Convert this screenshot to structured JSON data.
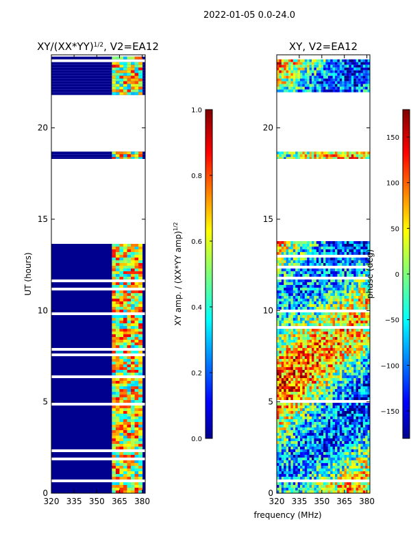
{
  "suptitle": "2022-01-05 0.0-24.0",
  "colors": {
    "white": "#ffffff",
    "axis": "#000000",
    "background_low": "#00008f"
  },
  "chart_data": [
    {
      "type": "heatmap",
      "title": "XY/(XX*YY)",
      "title_superscript": "1/2",
      "title_suffix": ", V2=EA12",
      "xlabel": "",
      "ylabel": "UT (hours)",
      "xlim": [
        320,
        382
      ],
      "ylim": [
        0,
        24
      ],
      "x_ticks": [
        320,
        335,
        350,
        365,
        380
      ],
      "y_ticks": [
        0,
        5,
        10,
        15,
        20
      ],
      "colorbar": {
        "label": "XY amp. / (XX*YY amp)",
        "label_superscript": "1/2",
        "range": [
          0.0,
          1.0
        ],
        "ticks": [
          0.0,
          0.2,
          0.4,
          0.6,
          0.8,
          1.0
        ],
        "tick_labels": [
          "0.0",
          "0.2",
          "0.4",
          "0.6",
          "0.8",
          "1.0"
        ],
        "colormap": "jet"
      },
      "data_rows_ut_hours": [
        [
          0,
          13.8
        ],
        [
          18.3,
          18.7
        ],
        [
          21.8,
          23.9
        ]
      ],
      "bright_band_mhz": [
        360,
        380
      ],
      "background_value": 0.0,
      "band_value_range": [
        0.3,
        0.9
      ]
    },
    {
      "type": "heatmap",
      "title": "XY, V2=EA12",
      "xlabel": "frequency (MHz)",
      "ylabel": "",
      "xlim": [
        320,
        382
      ],
      "ylim": [
        0,
        24
      ],
      "x_ticks": [
        320,
        335,
        350,
        365,
        380
      ],
      "y_ticks": [
        0,
        5,
        10,
        15,
        20
      ],
      "colorbar": {
        "label": "phase (deg)",
        "range": [
          -180,
          180
        ],
        "ticks": [
          -150,
          -100,
          -50,
          0,
          50,
          100,
          150
        ],
        "tick_labels": [
          "−150",
          "−100",
          "−50",
          "0",
          "50",
          "100",
          "150"
        ],
        "colormap": "jet"
      },
      "data_rows_ut_hours": [
        [
          0,
          13.8
        ],
        [
          18.3,
          18.7
        ],
        [
          21.8,
          23.9
        ]
      ]
    }
  ]
}
